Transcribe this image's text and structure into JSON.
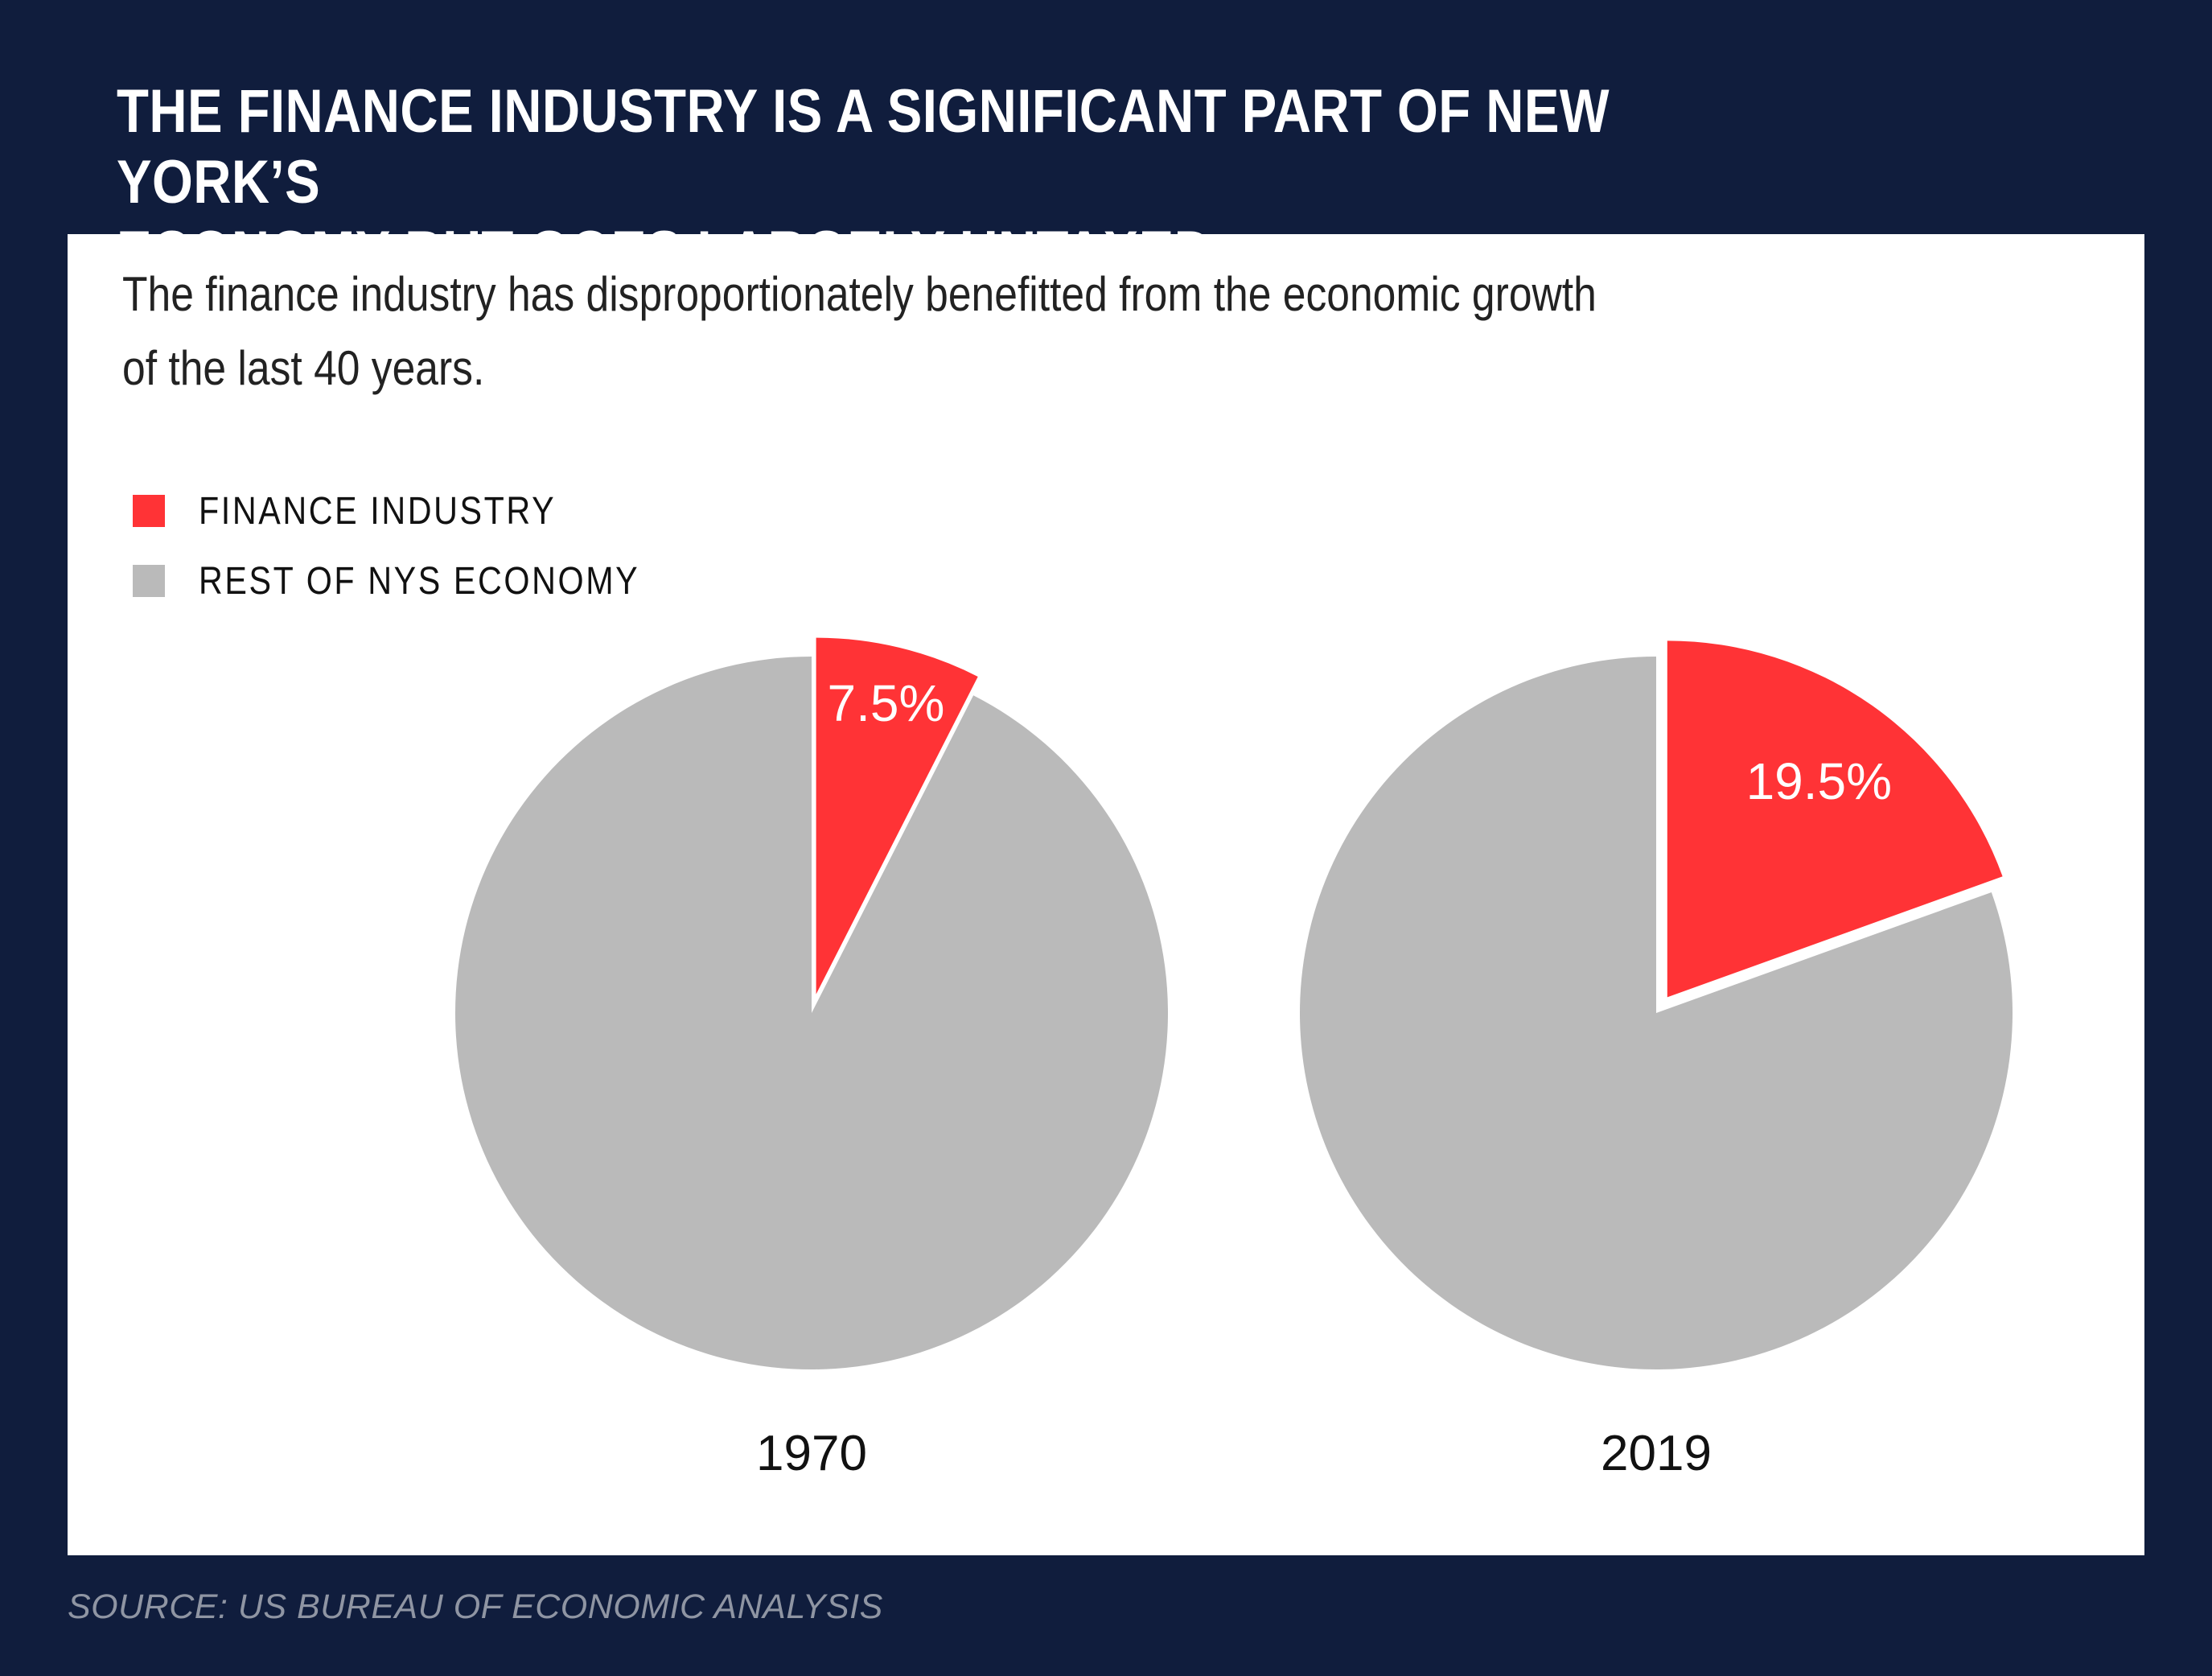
{
  "title": "THE FINANCE INDUSTRY IS A SIGNIFICANT PART OF NEW YORK’S\nECONOMY BUT GOES LARGELY UNTAXED",
  "subtitle": "The finance industry has disproportionately benefitted from the economic growth\nof the last 40 years.",
  "source": "SOURCE: US BUREAU OF ECONOMIC ANALYSIS",
  "colors": {
    "background": "#101d3d",
    "panel": "#ffffff",
    "finance": "#ff3336",
    "rest": "#bababa"
  },
  "legend": [
    {
      "label": "FINANCE INDUSTRY",
      "color": "#ff3336"
    },
    {
      "label": "REST OF NYS ECONOMY",
      "color": "#bababa"
    }
  ],
  "chart_data": [
    {
      "type": "pie",
      "title": "1970",
      "legend_position": "top-left",
      "slices": [
        {
          "label": "FINANCE INDUSTRY",
          "value": 7.5,
          "display": "7.5%",
          "color": "#ff3336",
          "exploded": true
        },
        {
          "label": "REST OF NYS ECONOMY",
          "value": 92.5,
          "color": "#bababa"
        }
      ]
    },
    {
      "type": "pie",
      "title": "2019",
      "legend_position": "top-left",
      "slices": [
        {
          "label": "FINANCE INDUSTRY",
          "value": 19.5,
          "display": "19.5%",
          "color": "#ff3336",
          "exploded": true
        },
        {
          "label": "REST OF NYS ECONOMY",
          "value": 80.5,
          "color": "#bababa"
        }
      ]
    }
  ]
}
